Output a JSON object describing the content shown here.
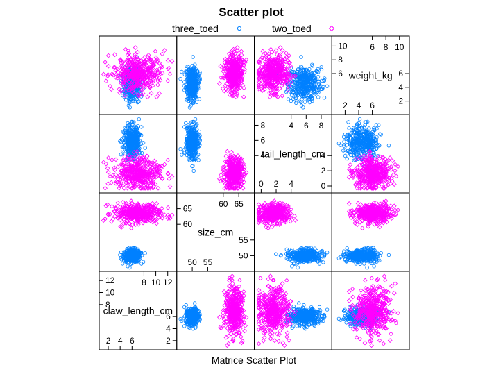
{
  "chart_data": {
    "type": "scatter",
    "title": "Scatter plot",
    "xlabel": "Matrice Scatter Plot",
    "legend_position": "top",
    "series": [
      {
        "name": "three_toed",
        "color": "#0080ff",
        "marker": "circle"
      },
      {
        "name": "two_toed",
        "color": "#ff00ff",
        "marker": "diamond"
      }
    ],
    "variables": [
      {
        "name": "claw_length_cm",
        "range": [
          1,
          13
        ],
        "ticks_low": [
          2,
          4,
          6
        ],
        "ticks_high": [
          8,
          10,
          12
        ],
        "series_stats": [
          {
            "mean": 6.0,
            "sd": 0.7
          },
          {
            "mean": 6.8,
            "sd": 2.0
          }
        ]
      },
      {
        "name": "size_cm",
        "range": [
          46,
          69
        ],
        "ticks_low": [
          50,
          55
        ],
        "ticks_high": [
          60,
          65
        ],
        "series_stats": [
          {
            "mean": 50.0,
            "sd": 1.0
          },
          {
            "mean": 63.5,
            "sd": 1.5
          }
        ]
      },
      {
        "name": "tail_length_cm",
        "range": [
          -0.5,
          9
        ],
        "ticks_low": [
          0,
          2,
          4
        ],
        "ticks_high": [
          4,
          6,
          8
        ],
        "series_stats": [
          {
            "mean": 5.8,
            "sd": 1.1
          },
          {
            "mean": 1.7,
            "sd": 1.0
          }
        ]
      },
      {
        "name": "weight_kg",
        "range": [
          0.5,
          11
        ],
        "ticks_low": [
          2,
          4,
          6
        ],
        "ticks_high": [
          6,
          8,
          10
        ],
        "series_stats": [
          {
            "mean": 4.5,
            "sd": 1.2
          },
          {
            "mean": 6.0,
            "sd": 1.3
          }
        ]
      }
    ]
  }
}
